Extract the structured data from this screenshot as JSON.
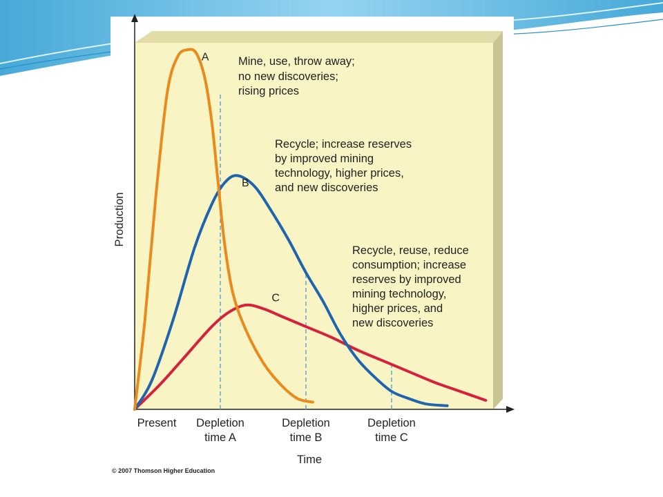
{
  "colors": {
    "plot_background": "#f8f4c4",
    "panel_side": "#c8c494",
    "curve_a": "#e98a1d",
    "curve_b": "#1f64ae",
    "curve_c": "#d6203c",
    "depletion_lines": "#5aa6dc",
    "slide_accent": "#56b4df"
  },
  "copyright": "© 2007 Thomson Higher Education",
  "chart_data": {
    "type": "line",
    "title": "",
    "xlabel": "Time",
    "ylabel": "Production",
    "x_ticks": [
      {
        "label_line1": "Present",
        "label_line2": "",
        "x": 0
      },
      {
        "label_line1": "Depletion",
        "label_line2": "time A",
        "x": 1
      },
      {
        "label_line1": "Depletion",
        "label_line2": "time B",
        "x": 2
      },
      {
        "label_line1": "Depletion",
        "label_line2": "time C",
        "x": 3
      }
    ],
    "xlim": [
      0,
      4.2
    ],
    "ylim": [
      0,
      100
    ],
    "grid": false,
    "series": [
      {
        "name": "A",
        "color": "#e98a1d",
        "annotation": [
          "Mine, use, throw away;",
          "no new discoveries;",
          "rising prices"
        ],
        "depletion_x": 1.0,
        "depletion_y": 88,
        "label_at": {
          "x": 0.78,
          "y": 97
        },
        "x": [
          0,
          0.12,
          0.25,
          0.38,
          0.5,
          0.62,
          0.72,
          0.82,
          0.9,
          0.97,
          1.05,
          1.15,
          1.3,
          1.5,
          1.7,
          1.9,
          2.08
        ],
        "y": [
          0,
          25,
          60,
          88,
          98,
          100,
          99,
          92,
          80,
          64,
          46,
          32,
          22,
          13,
          7,
          3,
          2
        ]
      },
      {
        "name": "B",
        "color": "#1f64ae",
        "annotation": [
          "Recycle; increase reserves",
          "by improved mining",
          "technology, higher prices,",
          "and new discoveries"
        ],
        "depletion_x": 2.0,
        "depletion_y": 38,
        "label_at": {
          "x": 1.25,
          "y": 62
        },
        "x": [
          0,
          0.2,
          0.45,
          0.7,
          0.9,
          1.05,
          1.2,
          1.4,
          1.6,
          1.8,
          2.0,
          2.2,
          2.4,
          2.6,
          2.8,
          3.0,
          3.2,
          3.4,
          3.65
        ],
        "y": [
          0,
          8,
          25,
          45,
          57,
          63,
          65,
          62,
          55,
          47,
          38,
          30,
          21,
          14,
          9,
          5,
          3,
          1.5,
          1
        ]
      },
      {
        "name": "C",
        "color": "#d6203c",
        "annotation": [
          "Recycle, reuse, reduce",
          "consumption; increase",
          "reserves by improved",
          "mining technology,",
          "higher prices, and",
          "new discoveries"
        ],
        "depletion_x": 3.0,
        "depletion_y": 13,
        "label_at": {
          "x": 1.6,
          "y": 30
        },
        "x": [
          0,
          0.3,
          0.6,
          0.9,
          1.1,
          1.3,
          1.5,
          1.7,
          2.0,
          2.3,
          2.6,
          2.9,
          3.2,
          3.5,
          3.8,
          4.1
        ],
        "y": [
          0,
          7,
          15,
          23,
          27,
          29,
          28,
          26,
          23,
          20,
          16.5,
          13.5,
          10.5,
          7.5,
          5,
          2.5
        ]
      }
    ]
  }
}
